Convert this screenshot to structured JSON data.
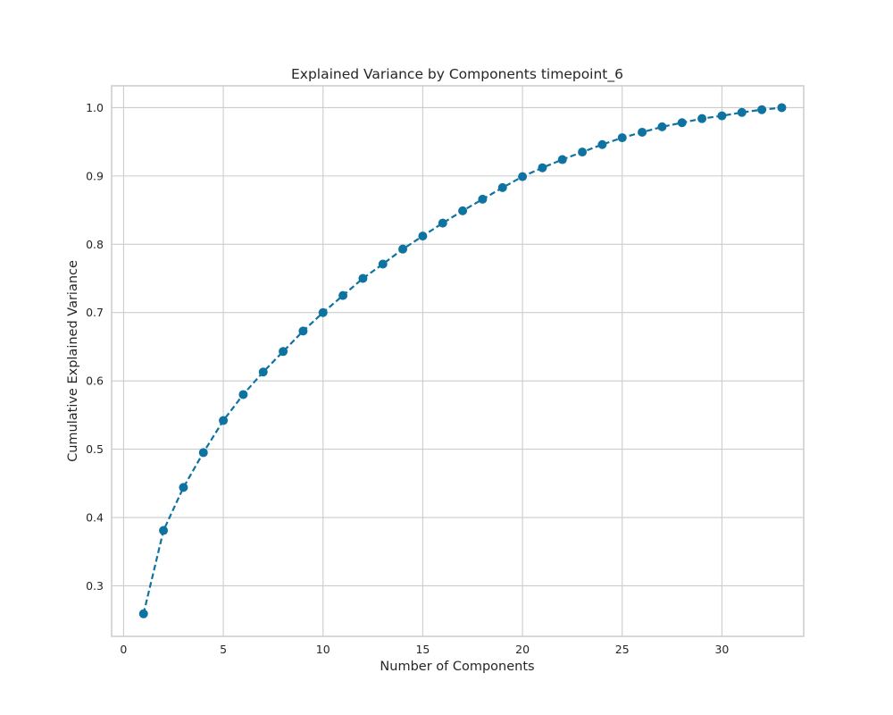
{
  "chart_data": {
    "type": "line",
    "title": "Explained Variance by Components timepoint_6",
    "xlabel": "Number of Components",
    "ylabel": "Cumulative Explained Variance",
    "xlim": [
      -0.6,
      34.1
    ],
    "ylim": [
      0.226,
      1.032
    ],
    "xticks": [
      0,
      5,
      10,
      15,
      20,
      25,
      30
    ],
    "yticks": [
      0.3,
      0.4,
      0.5,
      0.6,
      0.7,
      0.8,
      0.9,
      1.0
    ],
    "grid": true,
    "series": [
      {
        "color": "#0f73a1",
        "marker": "circle",
        "line_style": "dashed",
        "x": [
          1,
          2,
          3,
          4,
          5,
          6,
          7,
          8,
          9,
          10,
          11,
          12,
          13,
          14,
          15,
          16,
          17,
          18,
          19,
          20,
          21,
          22,
          23,
          24,
          25,
          26,
          27,
          28,
          29,
          30,
          31,
          32,
          33
        ],
        "values": [
          0.259,
          0.381,
          0.444,
          0.495,
          0.542,
          0.58,
          0.613,
          0.643,
          0.673,
          0.7,
          0.725,
          0.75,
          0.771,
          0.793,
          0.812,
          0.831,
          0.849,
          0.866,
          0.883,
          0.899,
          0.912,
          0.924,
          0.935,
          0.946,
          0.956,
          0.964,
          0.972,
          0.978,
          0.984,
          0.988,
          0.993,
          0.997,
          1.0
        ]
      }
    ]
  }
}
